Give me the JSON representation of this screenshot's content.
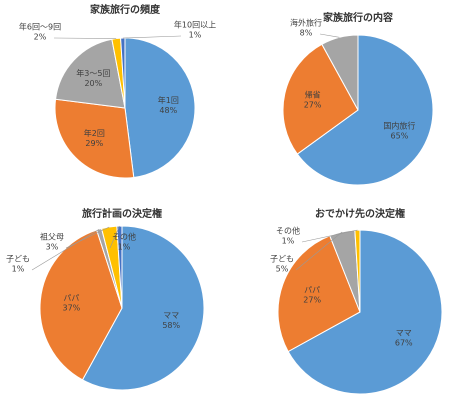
{
  "chart_data": [
    {
      "type": "pie",
      "title": "家族旅行の頻度",
      "categories": [
        "年1回",
        "年2回",
        "年3～5回",
        "年6回～9回",
        "年10回以上"
      ],
      "values": [
        48,
        29,
        20,
        2,
        1
      ],
      "value_labels": [
        "48%",
        "29%",
        "20%",
        "2%",
        "1%"
      ],
      "colors": [
        "#5b9bd5",
        "#ed7d31",
        "#a5a5a5",
        "#ffc000",
        "#4472c4"
      ]
    },
    {
      "type": "pie",
      "title": "家族旅行の内容",
      "categories": [
        "国内旅行",
        "帰省",
        "海外旅行"
      ],
      "values": [
        65,
        27,
        8
      ],
      "value_labels": [
        "65%",
        "27%",
        "8%"
      ],
      "colors": [
        "#5b9bd5",
        "#ed7d31",
        "#a5a5a5"
      ]
    },
    {
      "type": "pie",
      "title": "旅行計画の決定権",
      "categories": [
        "ママ",
        "パパ",
        "子ども",
        "祖父母",
        "その他"
      ],
      "values": [
        58,
        37,
        1,
        3,
        1
      ],
      "value_labels": [
        "58%",
        "37%",
        "1%",
        "3%",
        "1%"
      ],
      "colors": [
        "#5b9bd5",
        "#ed7d31",
        "#a5a5a5",
        "#ffc000",
        "#4472c4"
      ]
    },
    {
      "type": "pie",
      "title": "おでかけ先の決定権",
      "categories": [
        "ママ",
        "パパ",
        "子ども",
        "その他"
      ],
      "values": [
        67,
        27,
        5,
        1
      ],
      "value_labels": [
        "67%",
        "27%",
        "5%",
        "1%"
      ],
      "colors": [
        "#5b9bd5",
        "#ed7d31",
        "#a5a5a5",
        "#ffc000"
      ]
    }
  ]
}
